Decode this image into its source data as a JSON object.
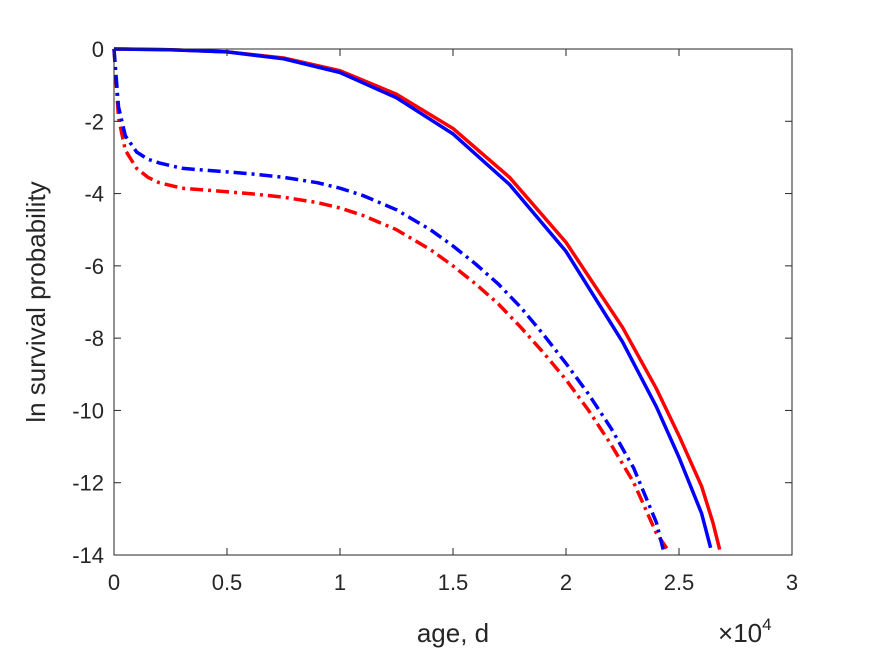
{
  "chart_data": {
    "type": "line",
    "title": "",
    "xlabel": "age, d",
    "ylabel": "ln survival probability",
    "x_exponent": {
      "base": "10",
      "power": "4"
    },
    "xlim": [
      0,
      30000
    ],
    "ylim": [
      -14,
      0
    ],
    "grid": false,
    "x_ticks": [
      0,
      5000,
      10000,
      15000,
      20000,
      25000,
      30000
    ],
    "x_tick_labels": [
      "0",
      "0.5",
      "1",
      "1.5",
      "2",
      "2.5",
      "3"
    ],
    "y_ticks": [
      0,
      -2,
      -4,
      -6,
      -8,
      -10,
      -12,
      -14
    ],
    "y_tick_labels": [
      "0",
      "-2",
      "-4",
      "-6",
      "-8",
      "-10",
      "-12",
      "-14"
    ],
    "series": [
      {
        "color": "#ff0000",
        "style": "solid",
        "x": [
          0,
          2500,
          5000,
          7500,
          10000,
          12500,
          15000,
          17500,
          20000,
          22500,
          24000,
          25000,
          26000,
          26500,
          26800
        ],
        "y": [
          0,
          -0.02,
          -0.08,
          -0.25,
          -0.6,
          -1.25,
          -2.2,
          -3.55,
          -5.35,
          -7.7,
          -9.4,
          -10.7,
          -12.1,
          -13.1,
          -13.85
        ]
      },
      {
        "color": "#0000ff",
        "style": "solid",
        "x": [
          0,
          2500,
          5000,
          7500,
          10000,
          12500,
          15000,
          17500,
          20000,
          22500,
          24000,
          25000,
          26000,
          26400
        ],
        "y": [
          0,
          -0.02,
          -0.08,
          -0.27,
          -0.65,
          -1.35,
          -2.35,
          -3.75,
          -5.6,
          -8.1,
          -9.9,
          -11.3,
          -12.85,
          -13.8
        ]
      },
      {
        "color": "#ff0000",
        "style": "dash-dot",
        "x": [
          0,
          200,
          500,
          1000,
          1500,
          2000,
          3000,
          4000,
          5000,
          6000,
          7500,
          9000,
          10000,
          11000,
          12500,
          14000,
          15000,
          16000,
          17000,
          18000,
          19000,
          20000,
          21000,
          22000,
          23000,
          24000,
          24500
        ],
        "y": [
          0,
          -1.9,
          -2.8,
          -3.3,
          -3.55,
          -3.7,
          -3.85,
          -3.9,
          -3.95,
          -4.0,
          -4.1,
          -4.25,
          -4.4,
          -4.6,
          -5.0,
          -5.55,
          -6.0,
          -6.5,
          -7.05,
          -7.7,
          -8.4,
          -9.15,
          -10.0,
          -10.95,
          -12.0,
          -13.4,
          -13.85
        ]
      },
      {
        "color": "#0000ff",
        "style": "dash-dot",
        "x": [
          0,
          200,
          500,
          1000,
          1500,
          2000,
          3000,
          4000,
          5000,
          6000,
          7500,
          9000,
          10000,
          11000,
          12500,
          14000,
          15000,
          16000,
          17000,
          18000,
          19000,
          20000,
          21000,
          22000,
          23000,
          24000,
          24300
        ],
        "y": [
          0,
          -1.6,
          -2.4,
          -2.85,
          -3.05,
          -3.15,
          -3.3,
          -3.35,
          -3.4,
          -3.45,
          -3.55,
          -3.7,
          -3.85,
          -4.05,
          -4.45,
          -5.0,
          -5.45,
          -5.95,
          -6.5,
          -7.15,
          -7.9,
          -8.7,
          -9.55,
          -10.5,
          -11.6,
          -13.1,
          -13.85
        ]
      }
    ]
  }
}
